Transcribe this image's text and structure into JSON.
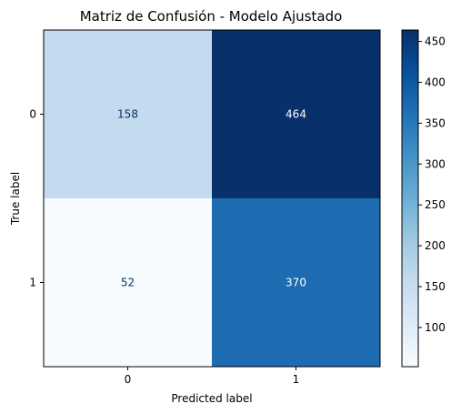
{
  "chart_data": {
    "type": "heatmap",
    "title": "Matriz de Confusión - Modelo Ajustado",
    "xlabel": "Predicted label",
    "ylabel": "True label",
    "x_categories": [
      "0",
      "1"
    ],
    "y_categories": [
      "0",
      "1"
    ],
    "values": [
      [
        158,
        464
      ],
      [
        52,
        370
      ]
    ],
    "colormap": "Blues",
    "color_range": [
      52,
      464
    ],
    "colorbar_ticks": [
      100,
      150,
      200,
      250,
      300,
      350,
      400,
      450
    ],
    "colors": {
      "low": "#f7fbff",
      "high": "#08306b",
      "text_dark": "#08306b",
      "text_light": "#ffffff"
    }
  }
}
